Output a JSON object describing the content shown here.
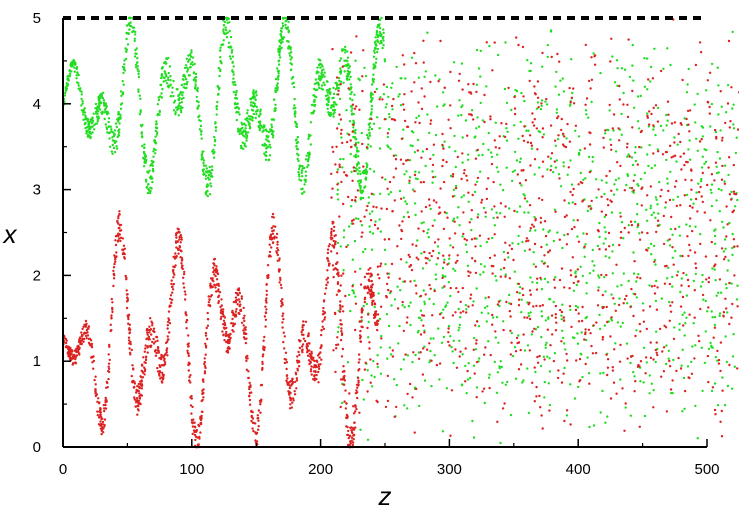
{
  "chart_data": {
    "type": "scatter",
    "title": "",
    "xlabel": "z",
    "ylabel": "x",
    "xlim": [
      0,
      500
    ],
    "ylim": [
      0,
      5
    ],
    "x_ticks": [
      "0",
      "100",
      "200",
      "300",
      "400",
      "500"
    ],
    "y_ticks": [
      "0",
      "1",
      "2",
      "3",
      "4",
      "5"
    ],
    "grid": false,
    "legend": "none",
    "reference_line": {
      "y": 5,
      "style": "dashed",
      "color": "#000000"
    },
    "series": [
      {
        "color": "#22dd22",
        "start": 4.0,
        "envelope_low": 3.0,
        "envelope_high": 5.0,
        "regular_until_z": 250,
        "scatter_range": [
          0.0,
          5.0
        ]
      },
      {
        "color": "#dd2222",
        "start": 1.0,
        "envelope_low": 0.0,
        "envelope_high": 2.6,
        "regular_until_z": 245,
        "scatter_range": [
          0.0,
          5.0
        ]
      }
    ]
  }
}
